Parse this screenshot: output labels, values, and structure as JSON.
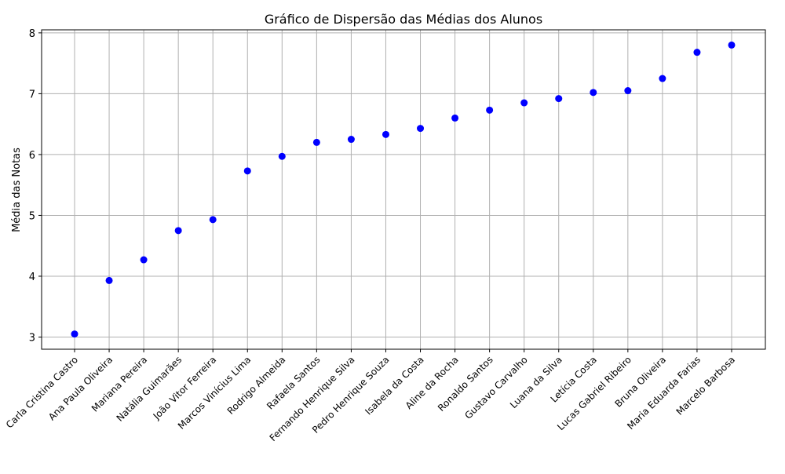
{
  "chart_data": {
    "type": "scatter",
    "title": "Gráfico de Dispersão das Médias dos Alunos",
    "xlabel": "",
    "ylabel": "Média das Notas",
    "ylim": [
      2.8,
      8.05
    ],
    "yticks": [
      3,
      4,
      5,
      6,
      7,
      8
    ],
    "grid": true,
    "marker_color": "#0000ff",
    "grid_color": "#b0b0b0",
    "categories": [
      "Carla Cristina Castro",
      "Ana Paula Oliveira",
      "Mariana Pereira",
      "Natália Guimarães",
      "João Vitor Ferreira",
      "Marcos Vinícius Lima",
      "Rodrigo Almeida",
      "Rafaela Santos",
      "Fernando Henrique Silva",
      "Pedro Henrique Souza",
      "Isabela da Costa",
      "Aline da Rocha",
      "Ronaldo Santos",
      "Gustavo Carvalho",
      "Luana da Silva",
      "Letícia Costa",
      "Lucas Gabriel Ribeiro",
      "Bruna Oliveira",
      "Maria Eduarda Farias",
      "Marcelo Barbosa"
    ],
    "values": [
      3.05,
      3.93,
      4.27,
      4.75,
      4.93,
      5.73,
      5.97,
      6.2,
      6.25,
      6.33,
      6.43,
      6.6,
      6.73,
      6.85,
      6.92,
      7.02,
      7.05,
      7.25,
      7.68,
      7.8
    ]
  }
}
